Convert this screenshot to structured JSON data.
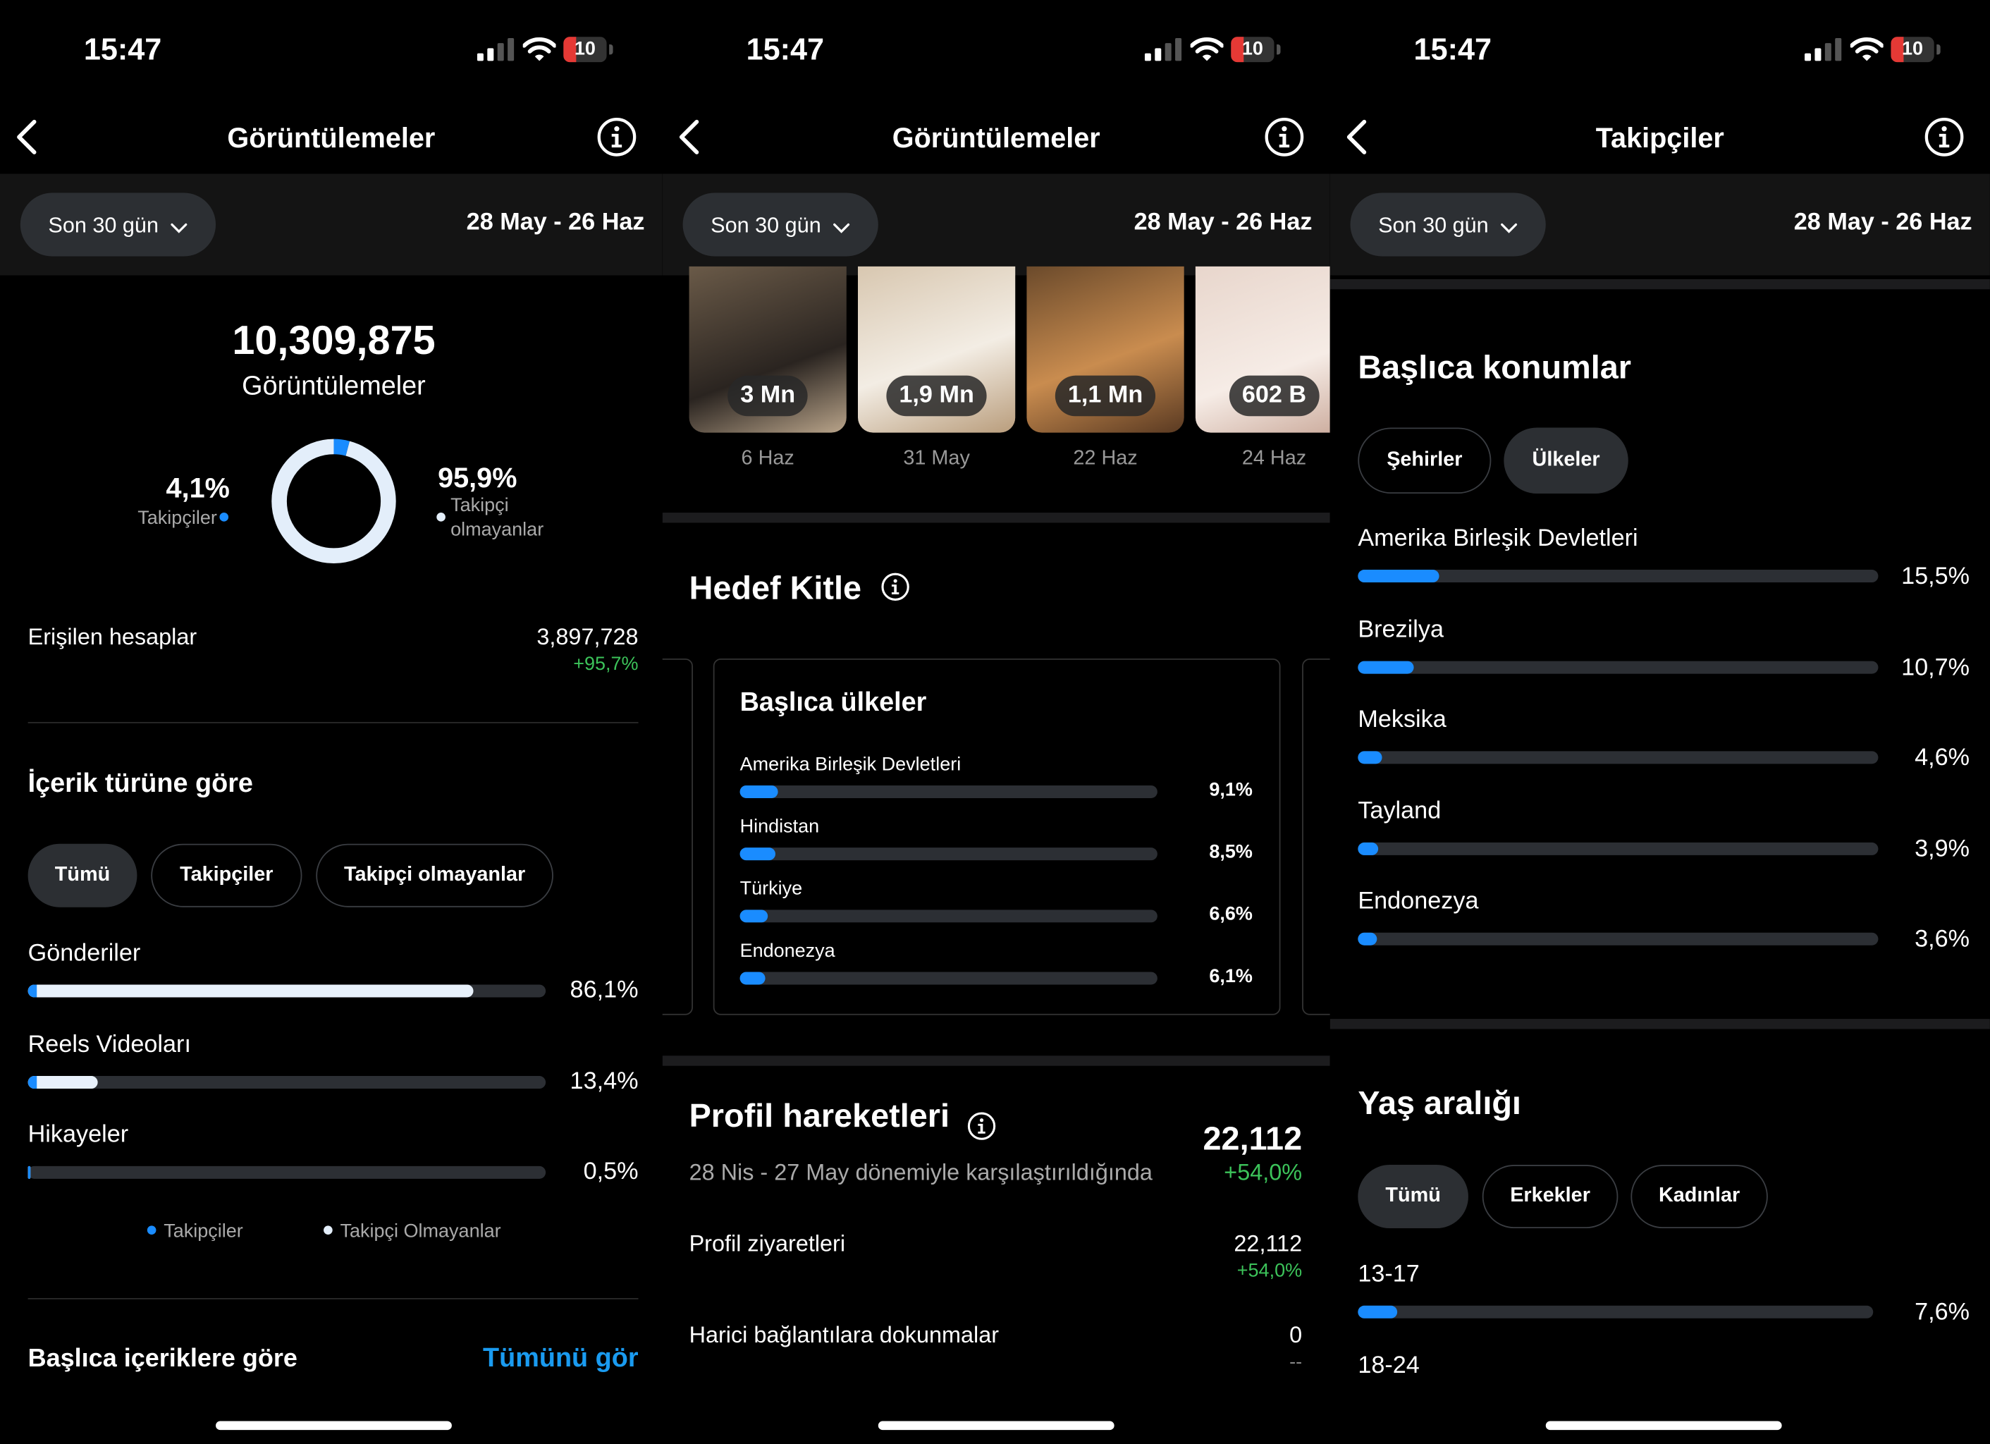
{
  "screens": [
    {
      "status": {
        "time": "15:47",
        "battery": "10"
      },
      "header": {
        "title": "Görüntülemeler"
      },
      "filter": {
        "period": "Son 30 gün",
        "range": "28 May - 26 Haz"
      },
      "total": {
        "value": "10,309,875",
        "label": "Görüntülemeler"
      },
      "donut": {
        "segments": [
          {
            "label": "Takipçiler",
            "value": 4.1,
            "value_label": "4,1%"
          },
          {
            "label": "Takipçi olmayanlar",
            "value": 95.9,
            "value_label": "95,9%"
          }
        ]
      },
      "reached": {
        "label": "Erişilen hesaplar",
        "value": "3,897,728",
        "change": "+95,7%"
      },
      "content_type": {
        "title": "İçerik türüne göre",
        "tabs": [
          "Tümü",
          "Takipçiler",
          "Takipçi olmayanlar"
        ],
        "bars": [
          {
            "label": "Gönderiler",
            "value": 86.1,
            "value_label": "86,1%"
          },
          {
            "label": "Reels Videoları",
            "value": 13.4,
            "value_label": "13,4%"
          },
          {
            "label": "Hikayeler",
            "value": 0.5,
            "value_label": "0,5%"
          }
        ],
        "legend": [
          "Takipçiler",
          "Takipçi Olmayanlar"
        ]
      },
      "top_content": {
        "title": "Başlıca içeriklere göre",
        "link": "Tümünü gör"
      }
    },
    {
      "status": {
        "time": "15:47",
        "battery": "10"
      },
      "header": {
        "title": "Görüntülemeler"
      },
      "filter": {
        "period": "Son 30 gün",
        "range": "28 May - 26 Haz"
      },
      "thumbnails": [
        {
          "views": "3 Mn",
          "date": "6 Haz"
        },
        {
          "views": "1,9 Mn",
          "date": "31 May"
        },
        {
          "views": "1,1 Mn",
          "date": "22 Haz"
        },
        {
          "views": "602 B",
          "date": "24 Haz"
        }
      ],
      "audience": {
        "title": "Hedef Kitle",
        "card_title": "Başlıca ülkeler",
        "bars": [
          {
            "label": "Amerika Birleşik Devletleri",
            "value": 9.1,
            "value_label": "9,1%"
          },
          {
            "label": "Hindistan",
            "value": 8.5,
            "value_label": "8,5%"
          },
          {
            "label": "Türkiye",
            "value": 6.6,
            "value_label": "6,6%"
          },
          {
            "label": "Endonezya",
            "value": 6.1,
            "value_label": "6,1%"
          }
        ]
      },
      "profile": {
        "title": "Profil hareketleri",
        "total": "22,112",
        "change": "+54,0%",
        "comparison": "28 Nis - 27 May dönemiyle karşılaştırıldığında",
        "rows": [
          {
            "label": "Profil ziyaretleri",
            "value": "22,112",
            "change": "+54,0%"
          },
          {
            "label": "Harici bağlantılara dokunmalar",
            "value": "0",
            "change": "--"
          }
        ]
      }
    },
    {
      "status": {
        "time": "15:47",
        "battery": "10"
      },
      "header": {
        "title": "Takipçiler"
      },
      "filter": {
        "period": "Son 30 gün",
        "range": "28 May - 26 Haz"
      },
      "locations": {
        "title": "Başlıca konumlar",
        "tabs": [
          "Şehirler",
          "Ülkeler"
        ],
        "bars": [
          {
            "label": "Amerika Birleşik Devletleri",
            "value": 15.5,
            "value_label": "15,5%"
          },
          {
            "label": "Brezilya",
            "value": 10.7,
            "value_label": "10,7%"
          },
          {
            "label": "Meksika",
            "value": 4.6,
            "value_label": "4,6%"
          },
          {
            "label": "Tayland",
            "value": 3.9,
            "value_label": "3,9%"
          },
          {
            "label": "Endonezya",
            "value": 3.6,
            "value_label": "3,6%"
          }
        ]
      },
      "age": {
        "title": "Yaş aralığı",
        "tabs": [
          "Tümü",
          "Erkekler",
          "Kadınlar"
        ],
        "bars": [
          {
            "label": "13-17",
            "value": 7.6,
            "value_label": "7,6%"
          },
          {
            "label": "18-24"
          }
        ]
      }
    }
  ]
}
